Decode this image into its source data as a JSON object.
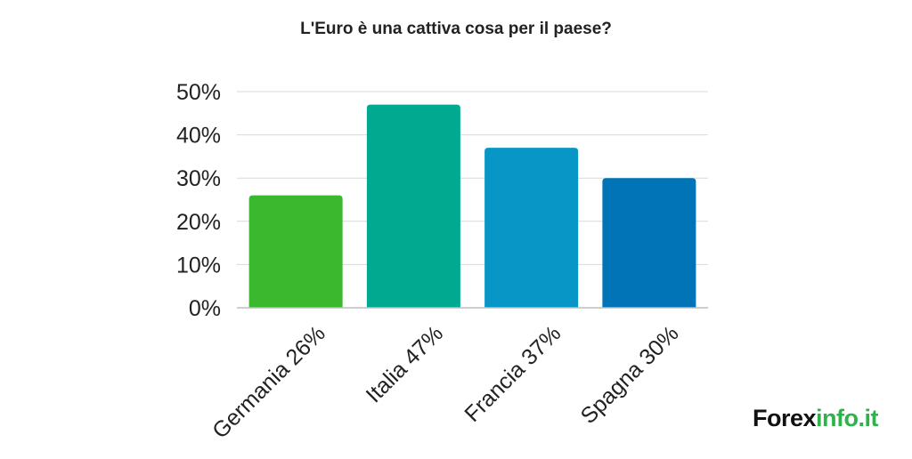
{
  "chart_data": {
    "type": "bar",
    "title": "L'Euro è una cattiva cosa per il paese?",
    "categories": [
      "Germania 26%",
      "Italia 47%",
      "Francia 37%",
      "Spagna 30%"
    ],
    "values": [
      26,
      47,
      37,
      30
    ],
    "colors": [
      "#3cb82e",
      "#00a98f",
      "#0796c6",
      "#0174b8"
    ],
    "xlabel": "",
    "ylabel": "",
    "ylim": [
      0,
      50
    ],
    "yticks": [
      "0%",
      "10%",
      "20%",
      "30%",
      "40%",
      "50%"
    ],
    "grid": true
  },
  "branding": {
    "logo_part1": "Forex",
    "logo_part2": "info.it",
    "logo_colors": [
      "#111111",
      "#2db34a"
    ]
  }
}
